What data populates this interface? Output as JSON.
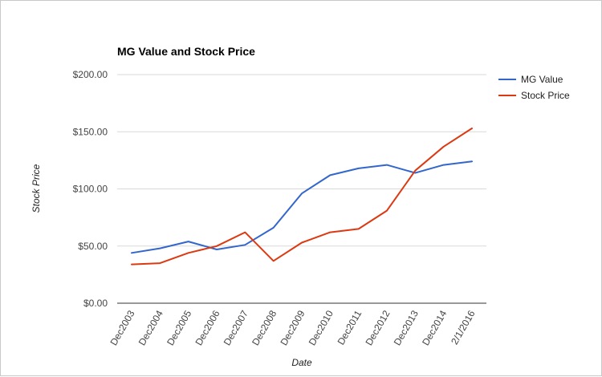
{
  "chart_data": {
    "type": "line",
    "title": "MG Value and Stock Price",
    "xlabel": "Date",
    "ylabel": "Stock Price",
    "categories": [
      "Dec2003",
      "Dec2004",
      "Dec2005",
      "Dec2006",
      "Dec2007",
      "Dec2008",
      "Dec2009",
      "Dec2010",
      "Dec2011",
      "Dec2012",
      "Dec2013",
      "Dec2014",
      "2/1/2016"
    ],
    "series": [
      {
        "name": "MG Value",
        "color": "#3366cc",
        "values": [
          44,
          48,
          54,
          47,
          51,
          66,
          96,
          112,
          118,
          121,
          114,
          121,
          124
        ]
      },
      {
        "name": "Stock Price",
        "color": "#dc3912",
        "values": [
          34,
          35,
          44,
          50,
          62,
          37,
          53,
          62,
          65,
          81,
          116,
          137,
          153
        ]
      }
    ],
    "yticks": [
      "$200.00",
      "$150.00",
      "$100.00",
      "$50.00",
      "$0.00"
    ],
    "ylim": [
      0,
      200
    ],
    "grid": true,
    "legend": "right"
  }
}
